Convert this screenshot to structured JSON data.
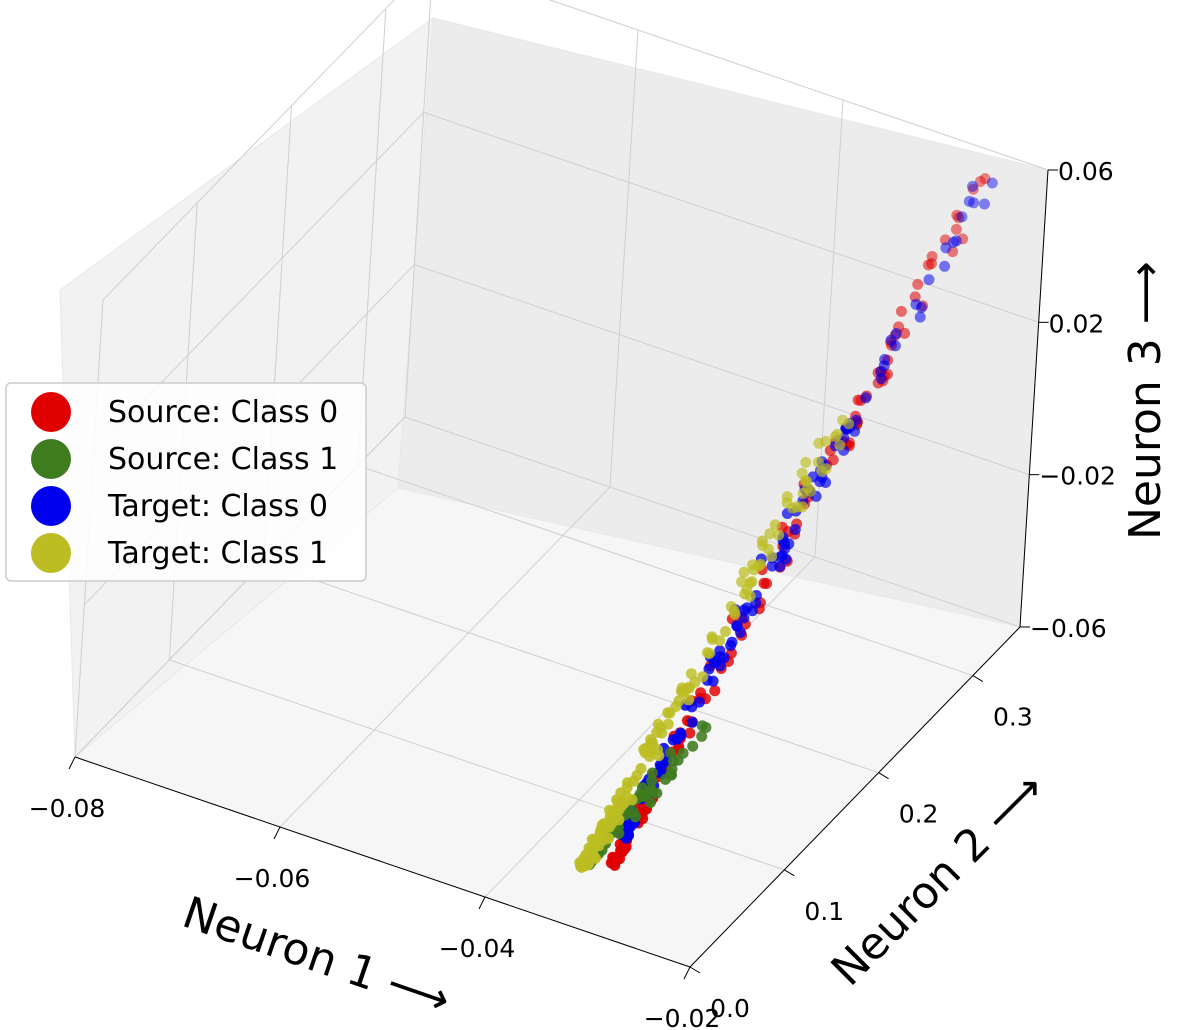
{
  "chart_data": {
    "type": "scatter",
    "dimensions": 3,
    "title": "",
    "xlabel": "Neuron 1 ⟶",
    "ylabel": "Neuron 2 ⟶",
    "zlabel": "Neuron 3 ⟶",
    "xlim": [
      -0.08,
      -0.02
    ],
    "ylim": [
      0.0,
      0.35
    ],
    "zlim": [
      -0.06,
      0.06
    ],
    "x_ticks": [
      "−0.08",
      "−0.06",
      "−0.04",
      "−0.02"
    ],
    "y_ticks": [
      "0.0",
      "0.1",
      "0.2",
      "0.3"
    ],
    "z_ticks": [
      "−0.06",
      "−0.02",
      "0.02",
      "0.06"
    ],
    "grid": true,
    "legend_position": "left",
    "series": [
      {
        "name": "Source: Class 0",
        "color": "#e00000",
        "trend": {
          "x_from": -0.033,
          "x_to": -0.024,
          "y_from": 0.06,
          "y_to": 0.33,
          "z_from": -0.06,
          "z_to": 0.06
        },
        "points": [
          {
            "x": -0.0255,
            "y": 0.315,
            "z": 0.052
          },
          {
            "x": -0.0262,
            "y": 0.298,
            "z": 0.043
          },
          {
            "x": -0.0268,
            "y": 0.289,
            "z": 0.036
          },
          {
            "x": -0.0265,
            "y": 0.276,
            "z": 0.03
          },
          {
            "x": -0.027,
            "y": 0.262,
            "z": 0.022
          },
          {
            "x": -0.0285,
            "y": 0.241,
            "z": 0.012
          },
          {
            "x": -0.0292,
            "y": 0.232,
            "z": 0.008
          },
          {
            "x": -0.03,
            "y": 0.214,
            "z": 0.003
          },
          {
            "x": -0.0303,
            "y": 0.196,
            "z": -0.004
          },
          {
            "x": -0.0308,
            "y": 0.182,
            "z": -0.012
          },
          {
            "x": -0.0315,
            "y": 0.16,
            "z": -0.02
          },
          {
            "x": -0.0318,
            "y": 0.142,
            "z": -0.028
          },
          {
            "x": -0.0322,
            "y": 0.128,
            "z": -0.034
          },
          {
            "x": -0.0325,
            "y": 0.114,
            "z": -0.04
          },
          {
            "x": -0.0328,
            "y": 0.096,
            "z": -0.046
          }
        ]
      },
      {
        "name": "Source: Class 1",
        "color": "#3f7b1f",
        "trend": {
          "x_from": -0.035,
          "x_to": -0.031,
          "y_from": 0.05,
          "y_to": 0.13,
          "z_from": -0.06,
          "z_to": -0.04
        },
        "points": [
          {
            "x": -0.033,
            "y": 0.098,
            "z": -0.046
          },
          {
            "x": -0.0335,
            "y": 0.082,
            "z": -0.05
          },
          {
            "x": -0.034,
            "y": 0.066,
            "z": -0.055
          },
          {
            "x": -0.0343,
            "y": 0.058,
            "z": -0.058
          },
          {
            "x": -0.0338,
            "y": 0.072,
            "z": -0.053
          },
          {
            "x": -0.0332,
            "y": 0.09,
            "z": -0.048
          }
        ]
      },
      {
        "name": "Target: Class 0",
        "color": "#0000ee",
        "trend": {
          "x_from": -0.033,
          "x_to": -0.024,
          "y_from": 0.07,
          "y_to": 0.33,
          "z_from": -0.055,
          "z_to": 0.06
        },
        "points": [
          {
            "x": -0.0248,
            "y": 0.32,
            "z": 0.055
          },
          {
            "x": -0.0255,
            "y": 0.305,
            "z": 0.046
          },
          {
            "x": -0.026,
            "y": 0.294,
            "z": 0.04
          },
          {
            "x": -0.0268,
            "y": 0.27,
            "z": 0.028
          },
          {
            "x": -0.0278,
            "y": 0.252,
            "z": 0.018
          },
          {
            "x": -0.0288,
            "y": 0.236,
            "z": 0.01
          },
          {
            "x": -0.0296,
            "y": 0.219,
            "z": 0.004
          },
          {
            "x": -0.0304,
            "y": 0.202,
            "z": -0.002
          },
          {
            "x": -0.0311,
            "y": 0.184,
            "z": -0.01
          },
          {
            "x": -0.0317,
            "y": 0.165,
            "z": -0.019
          },
          {
            "x": -0.0322,
            "y": 0.146,
            "z": -0.027
          },
          {
            "x": -0.0326,
            "y": 0.126,
            "z": -0.035
          },
          {
            "x": -0.0329,
            "y": 0.108,
            "z": -0.042
          },
          {
            "x": -0.0332,
            "y": 0.092,
            "z": -0.048
          }
        ]
      },
      {
        "name": "Target: Class 1",
        "color": "#bcbd22",
        "trend": {
          "x_from": -0.035,
          "x_to": -0.028,
          "y_from": 0.05,
          "y_to": 0.24,
          "z_from": -0.06,
          "z_to": 0.02
        },
        "points": [
          {
            "x": -0.0288,
            "y": 0.232,
            "z": 0.012
          },
          {
            "x": -0.0298,
            "y": 0.214,
            "z": 0.004
          },
          {
            "x": -0.0312,
            "y": 0.176,
            "z": -0.014
          },
          {
            "x": -0.0319,
            "y": 0.152,
            "z": -0.024
          },
          {
            "x": -0.0325,
            "y": 0.128,
            "z": -0.034
          },
          {
            "x": -0.033,
            "y": 0.104,
            "z": -0.043
          },
          {
            "x": -0.0336,
            "y": 0.084,
            "z": -0.05
          },
          {
            "x": -0.0341,
            "y": 0.066,
            "z": -0.056
          },
          {
            "x": -0.0344,
            "y": 0.056,
            "z": -0.059
          },
          {
            "x": -0.0339,
            "y": 0.074,
            "z": -0.053
          }
        ]
      }
    ]
  }
}
